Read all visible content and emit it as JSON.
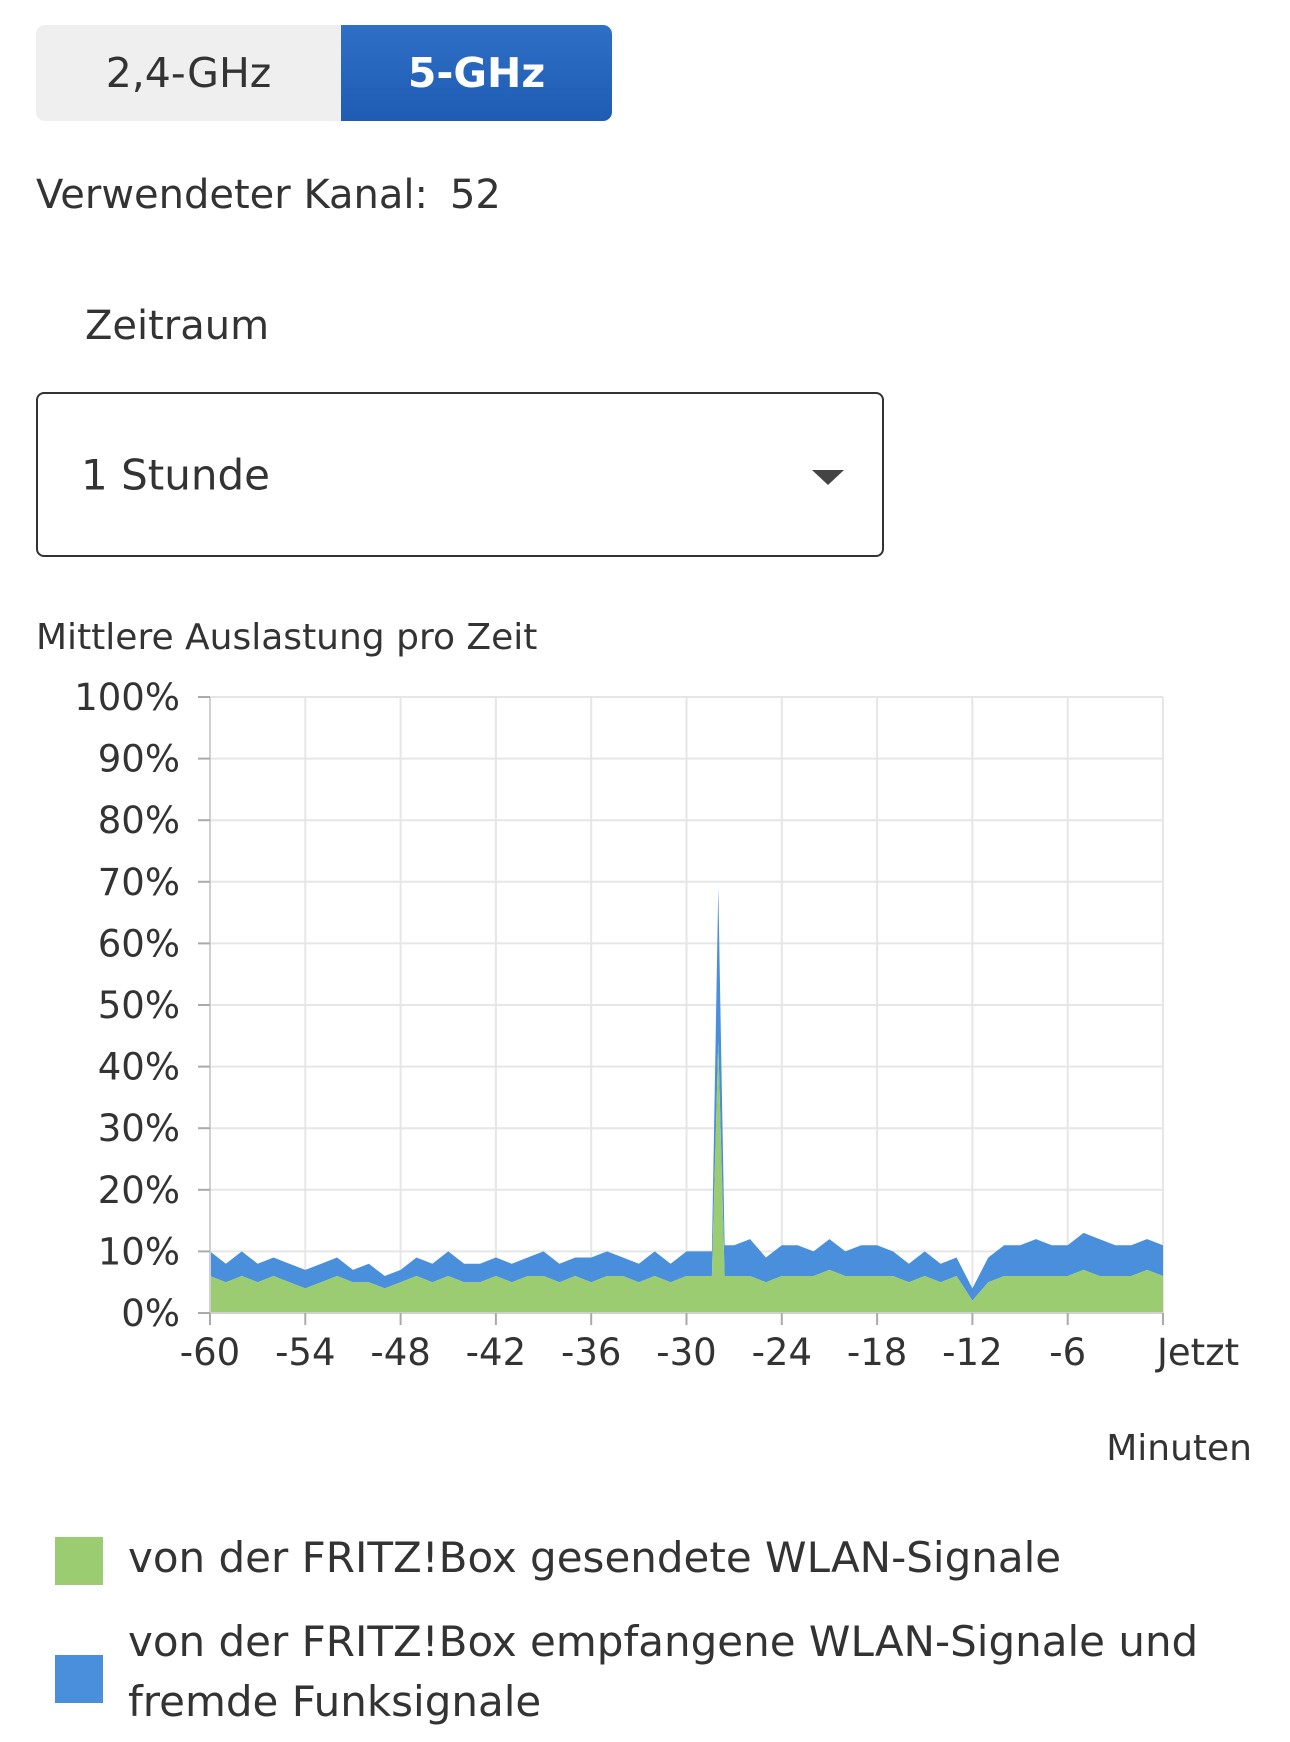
{
  "band_toggle": {
    "options": [
      "2,4-GHz",
      "5-GHz"
    ],
    "selected": "5-GHz"
  },
  "channel": {
    "label": "Verwendeter Kanal:",
    "value": "52"
  },
  "period": {
    "label": "Zeitraum",
    "value": "1 Stunde"
  },
  "chart_title": "Mittlere Auslastung pro Zeit",
  "unit_label": "Minuten",
  "legend": [
    "von der FRITZ!Box gesendete WLAN-Signale",
    "von der FRITZ!Box empfangene WLAN-Signale und fremde Funksignale"
  ],
  "colors": {
    "accent": "#2a67c0",
    "series_sent": "#9ccc72",
    "series_received": "#4a8fdc",
    "grid": "#e6e6e6",
    "text": "#333333"
  },
  "chart_data": {
    "type": "area",
    "stacked": true,
    "title": "Mittlere Auslastung pro Zeit",
    "xlabel": "Minuten",
    "ylabel": "",
    "x_ticks": [
      -60,
      -54,
      -48,
      -42,
      -36,
      -30,
      -24,
      -18,
      -12,
      -6,
      0
    ],
    "x_tick_labels": [
      "-60",
      "-54",
      "-48",
      "-42",
      "-36",
      "-30",
      "-24",
      "-18",
      "-12",
      "-6",
      "Jetzt"
    ],
    "y_ticks": [
      0,
      10,
      20,
      30,
      40,
      50,
      60,
      70,
      80,
      90,
      100
    ],
    "y_tick_labels": [
      "0%",
      "10%",
      "20%",
      "30%",
      "40%",
      "50%",
      "60%",
      "70%",
      "80%",
      "90%",
      "100%"
    ],
    "xlim": [
      -60,
      0
    ],
    "ylim": [
      0,
      100
    ],
    "grid": true,
    "x": [
      -60,
      -59,
      -58,
      -57,
      -56,
      -55,
      -54,
      -53,
      -52,
      -51,
      -50,
      -49,
      -48,
      -47,
      -46,
      -45,
      -44,
      -43,
      -42,
      -41,
      -40,
      -39,
      -38,
      -37,
      -36,
      -35,
      -34,
      -33,
      -32,
      -31,
      -30,
      -29,
      -28.4,
      -28,
      -27.6,
      -27,
      -26,
      -25,
      -24,
      -23,
      -22,
      -21,
      -20,
      -19,
      -18,
      -17,
      -16,
      -15,
      -14,
      -13,
      -12,
      -11,
      -10,
      -9,
      -8,
      -7,
      -6,
      -5,
      -4,
      -3,
      -2,
      -1,
      0
    ],
    "series": [
      {
        "name": "von der FRITZ!Box gesendete WLAN-Signale",
        "color": "#9ccc72",
        "values": [
          6,
          5,
          6,
          5,
          6,
          5,
          4,
          5,
          6,
          5,
          5,
          4,
          5,
          6,
          5,
          6,
          5,
          5,
          6,
          5,
          6,
          6,
          5,
          6,
          5,
          6,
          6,
          5,
          6,
          5,
          6,
          6,
          6,
          44,
          6,
          6,
          6,
          5,
          6,
          6,
          6,
          7,
          6,
          6,
          6,
          6,
          5,
          6,
          5,
          6,
          2,
          5,
          6,
          6,
          6,
          6,
          6,
          7,
          6,
          6,
          6,
          7,
          6
        ]
      },
      {
        "name": "von der FRITZ!Box empfangene WLAN-Signale und fremde Funksignale",
        "color": "#4a8fdc",
        "values": [
          4,
          3,
          4,
          3,
          3,
          3,
          3,
          3,
          3,
          2,
          3,
          2,
          2,
          3,
          3,
          4,
          3,
          3,
          3,
          3,
          3,
          4,
          3,
          3,
          4,
          4,
          3,
          3,
          4,
          3,
          4,
          4,
          4,
          25,
          5,
          5,
          6,
          4,
          5,
          5,
          4,
          5,
          4,
          5,
          5,
          4,
          3,
          4,
          3,
          3,
          2,
          4,
          5,
          5,
          6,
          5,
          5,
          6,
          6,
          5,
          5,
          5,
          5
        ]
      }
    ]
  }
}
